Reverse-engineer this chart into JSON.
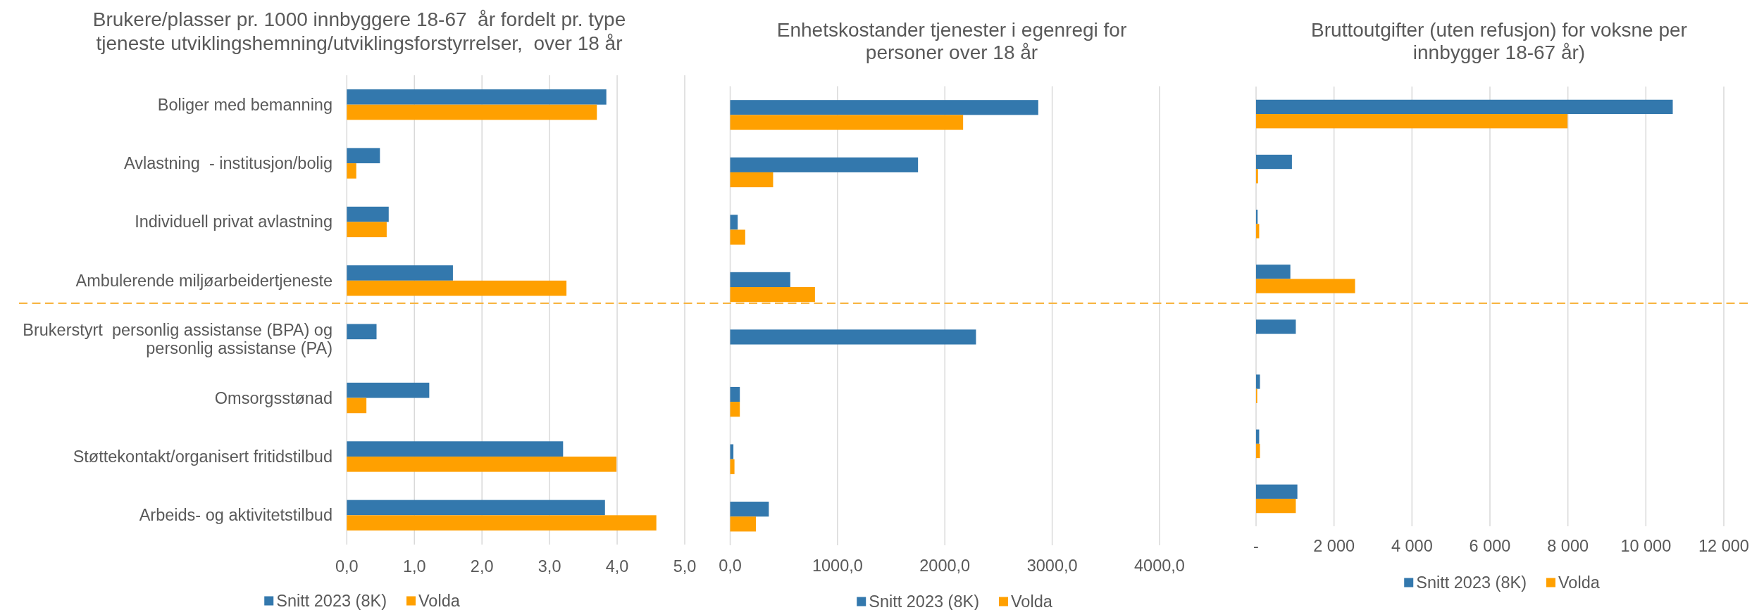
{
  "chart_data": [
    {
      "type": "bar",
      "orientation": "horizontal",
      "title": "Brukere/plasser pr. 1000 innbyggere 18-67  år fordelt pr. type tjeneste utviklingshemning/utviklingsforstyrrelser,  over 18 år",
      "categories": [
        "Boliger med bemanning",
        "Avlastning  - institusjon/bolig",
        "Individuell privat avlastning",
        "Ambulerende miljøarbeidertjeneste",
        "Brukerstyrt  personlig assistanse (BPA) og personlig assistanse (PA)",
        "Omsorgsstønad",
        "Støttekontakt/organisert fritidstilbud",
        "Arbeids- og aktivitetstilbud"
      ],
      "series": [
        {
          "name": "Snitt 2023 (8K)",
          "color": "#3378ad",
          "values": [
            3.84,
            0.49,
            0.62,
            1.57,
            0.44,
            1.22,
            3.2,
            3.82
          ]
        },
        {
          "name": "Volda",
          "color": "#ffa000",
          "values": [
            3.7,
            0.14,
            0.59,
            3.25,
            null,
            0.29,
            3.99,
            4.58
          ]
        }
      ],
      "xlim": [
        0,
        5
      ],
      "xticks": [
        {
          "value": 0,
          "label": "0,0"
        },
        {
          "value": 1,
          "label": "1,0"
        },
        {
          "value": 2,
          "label": "2,0"
        },
        {
          "value": 3,
          "label": "3,0"
        },
        {
          "value": 4,
          "label": "4,0"
        },
        {
          "value": 5,
          "label": "5,0"
        }
      ],
      "grid": "x",
      "legend": "bottom"
    },
    {
      "type": "bar",
      "orientation": "horizontal",
      "title": "Enhetskostander tjenester i egenregi for personer over 18 år",
      "categories": [
        null,
        null,
        null,
        null,
        null,
        null,
        null,
        null
      ],
      "series": [
        {
          "name": "Snitt 2023 (8K)",
          "color": "#3378ad",
          "values": [
            2870,
            1750,
            70,
            560,
            2290,
            90,
            30,
            360
          ]
        },
        {
          "name": "Volda",
          "color": "#ffa000",
          "values": [
            2170,
            400,
            140,
            790,
            null,
            90,
            40,
            240
          ]
        }
      ],
      "xlim": [
        0,
        4000
      ],
      "xticks": [
        {
          "value": 0,
          "label": "0,0"
        },
        {
          "value": 1000,
          "label": "1000,0"
        },
        {
          "value": 2000,
          "label": "2000,0"
        },
        {
          "value": 3000,
          "label": "3000,0"
        },
        {
          "value": 4000,
          "label": "4000,0"
        }
      ],
      "grid": "x",
      "legend": "bottom",
      "tick_labels": "x"
    },
    {
      "type": "bar",
      "orientation": "horizontal",
      "title": "Bruttoutgifter (uten refusjon) for voksne per innbygger 18-67 år)",
      "categories": [
        null,
        null,
        null,
        null,
        null,
        null,
        null,
        null
      ],
      "series": [
        {
          "name": "Snitt 2023 (8K)",
          "color": "#3378ad",
          "values": [
            10690,
            920,
            40,
            880,
            1020,
            100,
            80,
            1060
          ]
        },
        {
          "name": "Volda",
          "color": "#ffa000",
          "values": [
            7990,
            50,
            80,
            2540,
            null,
            30,
            100,
            1020
          ]
        }
      ],
      "xlim": [
        0,
        12000
      ],
      "xticks": [
        {
          "value": 0,
          "label": "-"
        },
        {
          "value": 2000,
          "label": "2 000"
        },
        {
          "value": 4000,
          "label": "4 000"
        },
        {
          "value": 6000,
          "label": "6 000"
        },
        {
          "value": 8000,
          "label": "8 000"
        },
        {
          "value": 10000,
          "label": "10 000"
        },
        {
          "value": 12000,
          "label": "12 000"
        }
      ],
      "grid": "x",
      "legend": "bottom",
      "tick_labels": "x"
    }
  ]
}
